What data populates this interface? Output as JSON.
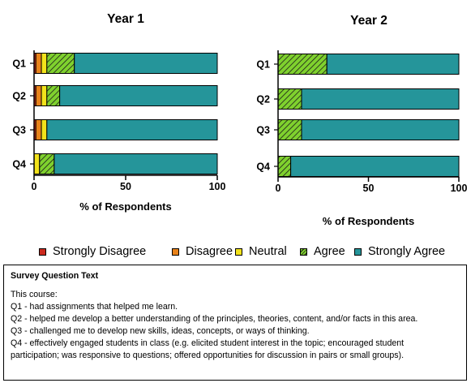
{
  "chart_data": [
    {
      "type": "bar",
      "orientation": "horizontal",
      "stacked": true,
      "title": "Year 1",
      "xlabel": "% of Respondents",
      "ylabel": "",
      "xlim": [
        0,
        100
      ],
      "xticks": [
        "0",
        "50",
        "100"
      ],
      "categories": [
        "Q1",
        "Q2",
        "Q3",
        "Q4"
      ],
      "series": [
        {
          "name": "Strongly Disagree",
          "values": [
            1,
            1,
            1,
            0
          ]
        },
        {
          "name": "Disagree",
          "values": [
            3,
            3,
            3,
            0
          ]
        },
        {
          "name": "Neutral",
          "values": [
            3,
            3,
            3,
            3
          ]
        },
        {
          "name": "Agree",
          "values": [
            15,
            7,
            0,
            8
          ]
        },
        {
          "name": "Strongly Agree",
          "values": [
            78,
            86,
            93,
            89
          ]
        }
      ]
    },
    {
      "type": "bar",
      "orientation": "horizontal",
      "stacked": true,
      "title": "Year 2",
      "xlabel": "% of Respondents",
      "ylabel": "",
      "xlim": [
        0,
        100
      ],
      "xticks": [
        "0",
        "50",
        "100"
      ],
      "categories": [
        "Q1",
        "Q2",
        "Q3",
        "Q4"
      ],
      "series": [
        {
          "name": "Strongly Disagree",
          "values": [
            0,
            0,
            0,
            0
          ]
        },
        {
          "name": "Disagree",
          "values": [
            0,
            0,
            0,
            0
          ]
        },
        {
          "name": "Neutral",
          "values": [
            0,
            0,
            0,
            0
          ]
        },
        {
          "name": "Agree",
          "values": [
            27,
            13,
            13,
            7
          ]
        },
        {
          "name": "Strongly Agree",
          "values": [
            73,
            87,
            87,
            93
          ]
        }
      ]
    }
  ],
  "colors": {
    "Strongly Disagree": "#cc2a1f",
    "Disagree": "#e8821a",
    "Neutral": "#f2e21b",
    "Agree": "#7fd12e",
    "Strongly Agree": "#25959a"
  },
  "legend": {
    "items": [
      "Strongly Disagree",
      "Disagree",
      "Neutral",
      "Agree",
      "Strongly Agree"
    ]
  },
  "survey_box": {
    "title": "Survey Question Text",
    "intro": "This course:",
    "lines": [
      "Q1 - had assignments that helped me learn.",
      "Q2 - helped me develop a better understanding of the principles, theories, content, and/or facts in this area.",
      "Q3 - challenged me to develop new skills, ideas, concepts, or ways of thinking.",
      "Q4 - effectively engaged students in class (e.g. elicited student interest in the topic; encouraged student",
      "participation; was responsive to questions; offered opportunities for discussion in pairs or small groups)."
    ]
  }
}
